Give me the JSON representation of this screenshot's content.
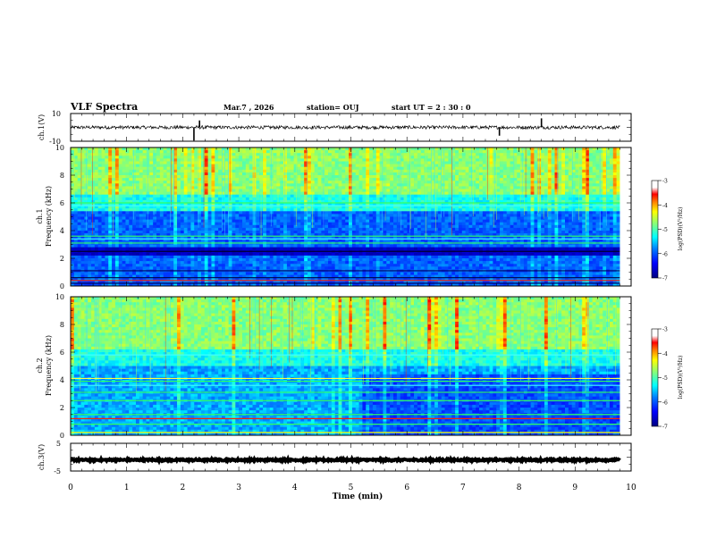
{
  "header": {
    "title": "VLF Spectra",
    "date": "Mar.7 , 2026",
    "station": "station= OUJ",
    "start_ut": "start UT =  2 : 30 : 0"
  },
  "colors": {
    "axis": "#000000",
    "colormap": [
      "#000080",
      "#0000ff",
      "#0080ff",
      "#00ffff",
      "#80ff80",
      "#ffff00",
      "#ff8000",
      "#ff0000",
      "#800000",
      "#ffffff"
    ]
  },
  "chart_data": [
    {
      "id": "ch1-waveform",
      "type": "line",
      "ylabel": "ch.1(V)",
      "ylim": [
        -10,
        10
      ],
      "y_ticklabels": [
        "10",
        "-10"
      ],
      "x_range_min": [
        0,
        9.8
      ],
      "baseline_v": 0,
      "noise_amplitude_v": 1.2,
      "spikes": [
        {
          "t": 2.2,
          "v": -9.5
        },
        {
          "t": 2.3,
          "v": 5
        },
        {
          "t": 7.65,
          "v": -6
        },
        {
          "t": 8.4,
          "v": 6.5
        }
      ]
    },
    {
      "id": "ch1-spectrogram",
      "type": "heatmap",
      "ylabel_channel": "ch.1",
      "ylabel": "Frequency (kHz)",
      "ylim": [
        0,
        10
      ],
      "y_ticks": [
        0,
        2,
        4,
        6,
        8,
        10
      ],
      "x_range_min": [
        0,
        9.8
      ],
      "high_band_start_khz": 6.5,
      "colorbar": {
        "label": "log(PSD)(V²/Hz)",
        "ticks": [
          "-3",
          "-4",
          "-5",
          "-6",
          "-7"
        ],
        "range": [
          -7,
          -3
        ]
      }
    },
    {
      "id": "ch2-spectrogram",
      "type": "heatmap",
      "ylabel_channel": "ch.2",
      "ylabel": "Frequency (kHz)",
      "ylim": [
        0,
        10
      ],
      "y_ticks": [
        0,
        2,
        4,
        6,
        8,
        10
      ],
      "x_range_min": [
        0,
        9.8
      ],
      "high_band_start_khz": 6.2,
      "colorbar": {
        "label": "log(PSD)(V²/Hz)",
        "ticks": [
          "-3",
          "-4",
          "-5",
          "-6",
          "-7"
        ],
        "range": [
          -7,
          -3
        ]
      }
    },
    {
      "id": "ch3-waveform",
      "type": "line",
      "ylabel": "ch.3(V)",
      "ylim": [
        -5,
        5
      ],
      "y_ticklabels": [
        "5",
        "-5"
      ],
      "x_range_min": [
        0,
        9.8
      ],
      "baseline_v": -1,
      "noise_amplitude_v": 0.3
    }
  ],
  "x_axis": {
    "label": "Time (min)",
    "min": 0,
    "max": 10,
    "ticks": [
      "0",
      "1",
      "2",
      "3",
      "4",
      "5",
      "6",
      "7",
      "8",
      "9",
      "10"
    ]
  }
}
